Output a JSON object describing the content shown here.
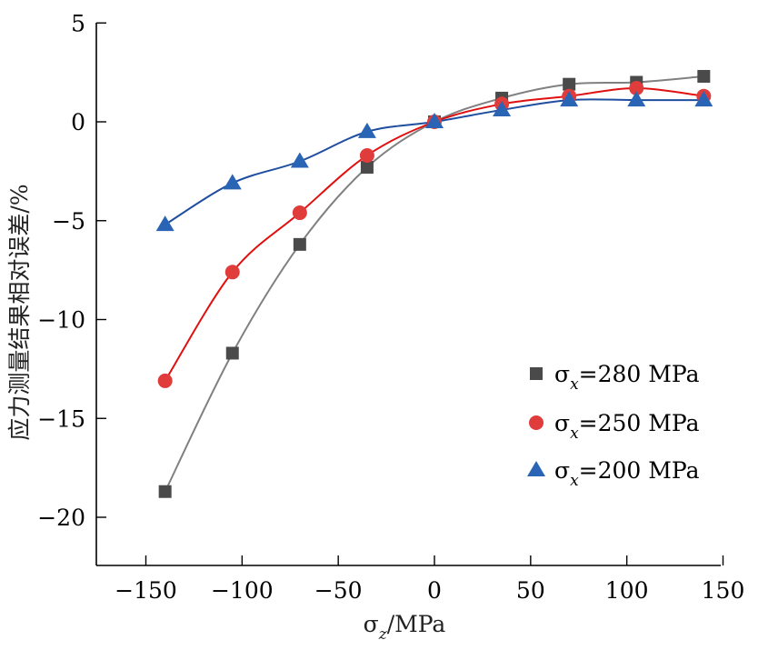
{
  "chart_data": {
    "type": "scatter",
    "title": "",
    "xlabel": "σz/MPa",
    "xlabel_parts": {
      "symbol": "σ",
      "subscript": "z",
      "unit": "/MPa"
    },
    "ylabel": "应力测量结果相对误差/%",
    "xlim": [
      -175,
      150
    ],
    "ylim": [
      -22.5,
      5
    ],
    "xticks": [
      -150,
      -100,
      -50,
      0,
      50,
      100,
      150
    ],
    "xtick_labels": [
      "−150",
      "−100",
      "−50",
      "0",
      "50",
      "100",
      "150"
    ],
    "yticks": [
      5,
      0,
      -5,
      -10,
      -15,
      -20
    ],
    "ytick_labels": [
      "5",
      "0",
      "−5",
      "−10",
      "−15",
      "−20"
    ],
    "grid": false,
    "legend_position": "right",
    "x": [
      -140,
      -105,
      -70,
      -35,
      0,
      35,
      70,
      105,
      140
    ],
    "series": [
      {
        "name": "σx=280 MPa",
        "label_parts": {
          "symbol": "σ",
          "subscript": "x",
          "value": "=280 MPa"
        },
        "marker": "square",
        "marker_color": "#4a4a4a",
        "line_color": "#808080",
        "values": [
          -18.7,
          -11.7,
          -6.2,
          -2.3,
          0,
          1.2,
          1.9,
          2.0,
          2.3
        ]
      },
      {
        "name": "σx=250 MPa",
        "label_parts": {
          "symbol": "σ",
          "subscript": "x",
          "value": "=250 MPa"
        },
        "marker": "circle",
        "marker_color": "#e03c3c",
        "line_color": "#e01010",
        "values": [
          -13.1,
          -7.6,
          -4.6,
          -1.7,
          0,
          0.9,
          1.3,
          1.7,
          1.3
        ]
      },
      {
        "name": "σx=200 MPa",
        "label_parts": {
          "symbol": "σ",
          "subscript": "x",
          "value": "=200 MPa"
        },
        "marker": "triangle",
        "marker_color": "#2a64b4",
        "line_color": "#1f4ea0",
        "values": [
          -5.2,
          -3.1,
          -2.0,
          -0.5,
          0,
          0.6,
          1.1,
          1.1,
          1.1
        ]
      }
    ]
  }
}
